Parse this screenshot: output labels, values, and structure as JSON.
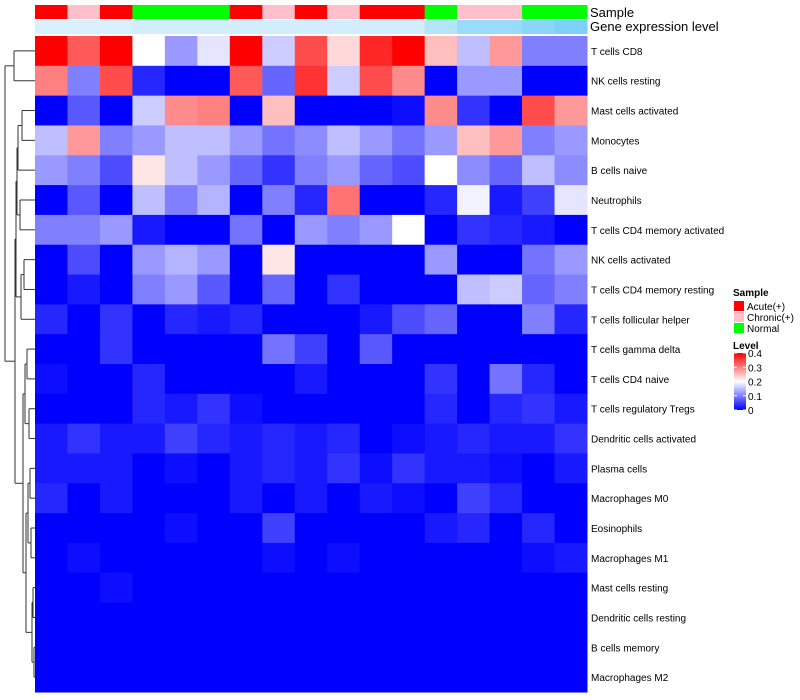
{
  "chart_data": {
    "type": "heatmap",
    "title": "",
    "annotation_labels": {
      "sample": "Sample",
      "expression": "Gene expression level"
    },
    "sample_groups": [
      "Acute(+)",
      "Chronic(+)",
      "Acute(+)",
      "Normal",
      "Normal",
      "Normal",
      "Acute(+)",
      "Chronic(+)",
      "Acute(+)",
      "Chronic(+)",
      "Acute(+)",
      "Acute(+)",
      "Normal",
      "Chronic(+)",
      "Chronic(+)",
      "Normal",
      "Normal"
    ],
    "expression_annotation": [
      0.05,
      0.05,
      0.05,
      0.1,
      0.1,
      0.1,
      0.1,
      0.1,
      0.1,
      0.1,
      0.1,
      0.1,
      0.3,
      0.5,
      0.5,
      0.6,
      0.7
    ],
    "rows": [
      "T cells CD8",
      "NK cells resting",
      "Mast cells activated",
      "Monocytes",
      "B cells naive",
      "Neutrophils",
      "T cells CD4 memory activated",
      "NK cells activated",
      "T cells CD4 memory resting",
      "T cells follicular helper",
      "T cells gamma delta",
      "T cells CD4 naive",
      "T cells regulatory  Tregs",
      "Dendritic cells activated",
      "Plasma cells",
      "Macrophages M0",
      "Eosinophils",
      "Macrophages M1",
      "Mast cells resting",
      "Dendritic cells resting",
      "B cells memory",
      "Macrophages M2"
    ],
    "values": [
      [
        0.4,
        0.33,
        0.4,
        0.2,
        0.12,
        0.18,
        0.4,
        0.16,
        0.34,
        0.23,
        0.37,
        0.4,
        0.25,
        0.15,
        0.28,
        0.1,
        0.1
      ],
      [
        0.3,
        0.1,
        0.34,
        0.03,
        0.0,
        0.0,
        0.33,
        0.08,
        0.36,
        0.16,
        0.34,
        0.29,
        0.0,
        0.12,
        0.12,
        0.0,
        0.0
      ],
      [
        0.0,
        0.07,
        0.0,
        0.16,
        0.29,
        0.3,
        0.0,
        0.25,
        0.0,
        0.0,
        0.0,
        0.01,
        0.29,
        0.04,
        0.0,
        0.34,
        0.28
      ],
      [
        0.15,
        0.28,
        0.1,
        0.12,
        0.15,
        0.15,
        0.12,
        0.09,
        0.11,
        0.15,
        0.12,
        0.09,
        0.12,
        0.25,
        0.28,
        0.1,
        0.12
      ],
      [
        0.12,
        0.1,
        0.06,
        0.22,
        0.15,
        0.12,
        0.08,
        0.04,
        0.1,
        0.12,
        0.08,
        0.06,
        0.2,
        0.11,
        0.08,
        0.15,
        0.11
      ],
      [
        0.0,
        0.07,
        0.0,
        0.15,
        0.1,
        0.14,
        0.0,
        0.1,
        0.03,
        0.31,
        0.0,
        0.0,
        0.03,
        0.19,
        0.02,
        0.05,
        0.18
      ],
      [
        0.1,
        0.1,
        0.12,
        0.02,
        0.0,
        0.0,
        0.09,
        0.0,
        0.12,
        0.1,
        0.12,
        0.2,
        0.0,
        0.04,
        0.03,
        0.02,
        0.0
      ],
      [
        0.0,
        0.06,
        0.0,
        0.12,
        0.14,
        0.12,
        0.0,
        0.22,
        0.0,
        0.0,
        0.0,
        0.0,
        0.12,
        0.0,
        0.0,
        0.09,
        0.12
      ],
      [
        0.0,
        0.02,
        0.0,
        0.1,
        0.12,
        0.07,
        0.0,
        0.08,
        0.0,
        0.04,
        0.0,
        0.0,
        0.0,
        0.15,
        0.16,
        0.08,
        0.1
      ],
      [
        0.03,
        0.0,
        0.04,
        0.0,
        0.03,
        0.02,
        0.03,
        0.0,
        0.0,
        0.0,
        0.02,
        0.06,
        0.08,
        0.0,
        0.0,
        0.1,
        0.03
      ],
      [
        0.0,
        0.0,
        0.04,
        0.0,
        0.0,
        0.0,
        0.0,
        0.09,
        0.05,
        0.0,
        0.07,
        0.0,
        0.0,
        0.0,
        0.0,
        0.0,
        0.0
      ],
      [
        0.01,
        0.0,
        0.0,
        0.03,
        0.0,
        0.0,
        0.0,
        0.0,
        0.02,
        0.0,
        0.0,
        0.0,
        0.04,
        0.0,
        0.09,
        0.03,
        0.0
      ],
      [
        0.0,
        0.0,
        0.0,
        0.03,
        0.02,
        0.04,
        0.01,
        0.0,
        0.0,
        0.0,
        0.0,
        0.0,
        0.03,
        0.0,
        0.03,
        0.04,
        0.02
      ],
      [
        0.02,
        0.04,
        0.02,
        0.02,
        0.05,
        0.03,
        0.02,
        0.03,
        0.02,
        0.03,
        0.0,
        0.01,
        0.02,
        0.03,
        0.02,
        0.02,
        0.04
      ],
      [
        0.02,
        0.02,
        0.02,
        0.0,
        0.01,
        0.0,
        0.02,
        0.03,
        0.02,
        0.04,
        0.01,
        0.04,
        0.02,
        0.02,
        0.01,
        0.0,
        0.02
      ],
      [
        0.03,
        0.0,
        0.02,
        0.0,
        0.0,
        0.0,
        0.02,
        0.0,
        0.02,
        0.0,
        0.02,
        0.01,
        0.0,
        0.05,
        0.03,
        0.0,
        0.0
      ],
      [
        0.0,
        0.0,
        0.0,
        0.0,
        0.01,
        0.0,
        0.0,
        0.05,
        0.0,
        0.0,
        0.0,
        0.0,
        0.02,
        0.03,
        0.0,
        0.03,
        0.0
      ],
      [
        0.0,
        0.01,
        0.0,
        0.0,
        0.0,
        0.0,
        0.0,
        0.01,
        0.0,
        0.01,
        0.0,
        0.0,
        0.0,
        0.0,
        0.0,
        0.01,
        0.02
      ],
      [
        0.0,
        0.0,
        0.01,
        0.0,
        0.0,
        0.0,
        0.0,
        0.0,
        0.0,
        0.0,
        0.0,
        0.0,
        0.0,
        0.0,
        0.0,
        0.0,
        0.0
      ],
      [
        0.0,
        0.0,
        0.0,
        0.0,
        0.0,
        0.0,
        0.0,
        0.0,
        0.0,
        0.0,
        0.0,
        0.0,
        0.0,
        0.0,
        0.0,
        0.0,
        0.0
      ],
      [
        0.0,
        0.0,
        0.0,
        0.0,
        0.0,
        0.0,
        0.0,
        0.0,
        0.0,
        0.0,
        0.0,
        0.0,
        0.0,
        0.0,
        0.0,
        0.0,
        0.0
      ],
      [
        0.0,
        0.0,
        0.0,
        0.0,
        0.0,
        0.0,
        0.0,
        0.0,
        0.0,
        0.0,
        0.0,
        0.0,
        0.0,
        0.0,
        0.0,
        0.0,
        0.0
      ]
    ],
    "color_scale": {
      "low": "#0000ff",
      "mid": "#ffffff",
      "high": "#ff0000",
      "min": 0,
      "mid_value": 0.2,
      "max": 0.4
    },
    "annotation_colors": {
      "Acute(+)": "#ff0000",
      "Chronic(+)": "#ffc0cb",
      "Normal": "#00ff00"
    },
    "expression_colors": {
      "low": "#e0f3fc",
      "high": "#4fc3f7"
    },
    "legend": {
      "sample_title": "Sample",
      "sample_items": [
        "Acute(+)",
        "Chronic(+)",
        "Normal"
      ],
      "level_title": "Level",
      "level_ticks": [
        "0.4",
        "0.3",
        "0.2",
        "0.1",
        "0"
      ],
      "position": "right"
    }
  }
}
